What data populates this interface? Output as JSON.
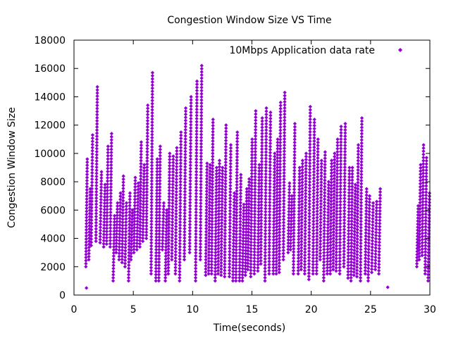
{
  "chart_data": {
    "type": "scatter",
    "title": "Congestion Window Size VS Time",
    "xlabel": "Time(seconds)",
    "ylabel": "Congestion Window Size",
    "xlim": [
      0,
      30
    ],
    "ylim": [
      0,
      18000
    ],
    "xticks": [
      0,
      5,
      10,
      15,
      20,
      25,
      30
    ],
    "yticks": [
      0,
      2000,
      4000,
      6000,
      8000,
      10000,
      12000,
      14000,
      16000,
      18000
    ],
    "grid": false,
    "legend_position": "top-right",
    "marker_color": "#9400d3",
    "series": [
      {
        "name": "10Mbps Application data rate",
        "sawtooth_ramps": [
          [
            1.0,
            2000,
            9600
          ],
          [
            1.25,
            2500,
            7500
          ],
          [
            1.45,
            3500,
            11300
          ],
          [
            1.85,
            3800,
            14700
          ],
          [
            2.2,
            3700,
            8700
          ],
          [
            2.5,
            3400,
            7800
          ],
          [
            2.75,
            3600,
            10500
          ],
          [
            3.05,
            3400,
            11400
          ],
          [
            3.3,
            1000,
            5600
          ],
          [
            3.55,
            3000,
            6500
          ],
          [
            3.8,
            2500,
            7200
          ],
          [
            4.05,
            2300,
            8400
          ],
          [
            4.3,
            2000,
            6500
          ],
          [
            4.6,
            1000,
            7200
          ],
          [
            4.8,
            2500,
            6000
          ],
          [
            5.05,
            3000,
            8300
          ],
          [
            5.3,
            3200,
            7900
          ],
          [
            5.55,
            3400,
            10800
          ],
          [
            5.8,
            3800,
            9200
          ],
          [
            6.1,
            4000,
            13400
          ],
          [
            6.5,
            1500,
            15700
          ],
          [
            6.9,
            1000,
            9600
          ],
          [
            7.15,
            1000,
            10500
          ],
          [
            7.45,
            3200,
            6500
          ],
          [
            7.7,
            1000,
            6000
          ],
          [
            7.95,
            1500,
            10000
          ],
          [
            8.25,
            2500,
            9800
          ],
          [
            8.55,
            1500,
            10400
          ],
          [
            8.9,
            1000,
            11500
          ],
          [
            9.3,
            2500,
            13200
          ],
          [
            9.75,
            3000,
            14000
          ],
          [
            10.25,
            1000,
            15100
          ],
          [
            10.65,
            2500,
            16200
          ],
          [
            11.1,
            1400,
            9300
          ],
          [
            11.35,
            1500,
            9200
          ],
          [
            11.6,
            1500,
            12400
          ],
          [
            11.9,
            1000,
            9000
          ],
          [
            12.15,
            1500,
            9500
          ],
          [
            12.4,
            1400,
            9000
          ],
          [
            12.7,
            1300,
            12000
          ],
          [
            13.1,
            1300,
            10600
          ],
          [
            13.4,
            1000,
            7200
          ],
          [
            13.65,
            1000,
            11500
          ],
          [
            13.95,
            1000,
            8500
          ],
          [
            14.2,
            1000,
            6400
          ],
          [
            14.45,
            1400,
            7500
          ],
          [
            14.65,
            1800,
            8200
          ],
          [
            14.9,
            1300,
            11000
          ],
          [
            15.2,
            1500,
            13000
          ],
          [
            15.5,
            1700,
            9200
          ],
          [
            15.75,
            2200,
            12500
          ],
          [
            16.1,
            1000,
            13200
          ],
          [
            16.45,
            1500,
            12900
          ],
          [
            16.8,
            1500,
            10000
          ],
          [
            17.05,
            1500,
            11000
          ],
          [
            17.3,
            1600,
            13600
          ],
          [
            17.65,
            2500,
            14300
          ],
          [
            18.05,
            3000,
            7900
          ],
          [
            18.25,
            3200,
            7000
          ],
          [
            18.5,
            1500,
            12100
          ],
          [
            18.9,
            1500,
            9000
          ],
          [
            19.15,
            1800,
            9500
          ],
          [
            19.45,
            1500,
            10000
          ],
          [
            19.8,
            1100,
            13300
          ],
          [
            20.15,
            1500,
            12400
          ],
          [
            20.45,
            1500,
            11000
          ],
          [
            20.75,
            2500,
            9500
          ],
          [
            21.05,
            1000,
            10100
          ],
          [
            21.35,
            1500,
            8000
          ],
          [
            21.6,
            1500,
            9500
          ],
          [
            21.85,
            1800,
            10000
          ],
          [
            22.1,
            1700,
            11000
          ],
          [
            22.4,
            1500,
            11900
          ],
          [
            22.75,
            2000,
            12100
          ],
          [
            23.1,
            1200,
            9000
          ],
          [
            23.35,
            1000,
            9000
          ],
          [
            23.6,
            1400,
            7800
          ],
          [
            23.85,
            1300,
            10600
          ],
          [
            24.15,
            1000,
            12500
          ],
          [
            24.55,
            1500,
            7500
          ],
          [
            24.8,
            1000,
            7000
          ],
          [
            25.1,
            1600,
            6500
          ],
          [
            25.4,
            1800,
            6600
          ],
          [
            25.7,
            1500,
            7500
          ],
          [
            28.9,
            2000,
            6300
          ],
          [
            29.1,
            2500,
            9200
          ],
          [
            29.35,
            2800,
            10600
          ],
          [
            29.6,
            1500,
            9700
          ],
          [
            29.85,
            1000,
            7200
          ]
        ],
        "isolated_points": [
          [
            1.05,
            500
          ],
          [
            26.45,
            550
          ]
        ]
      }
    ]
  }
}
